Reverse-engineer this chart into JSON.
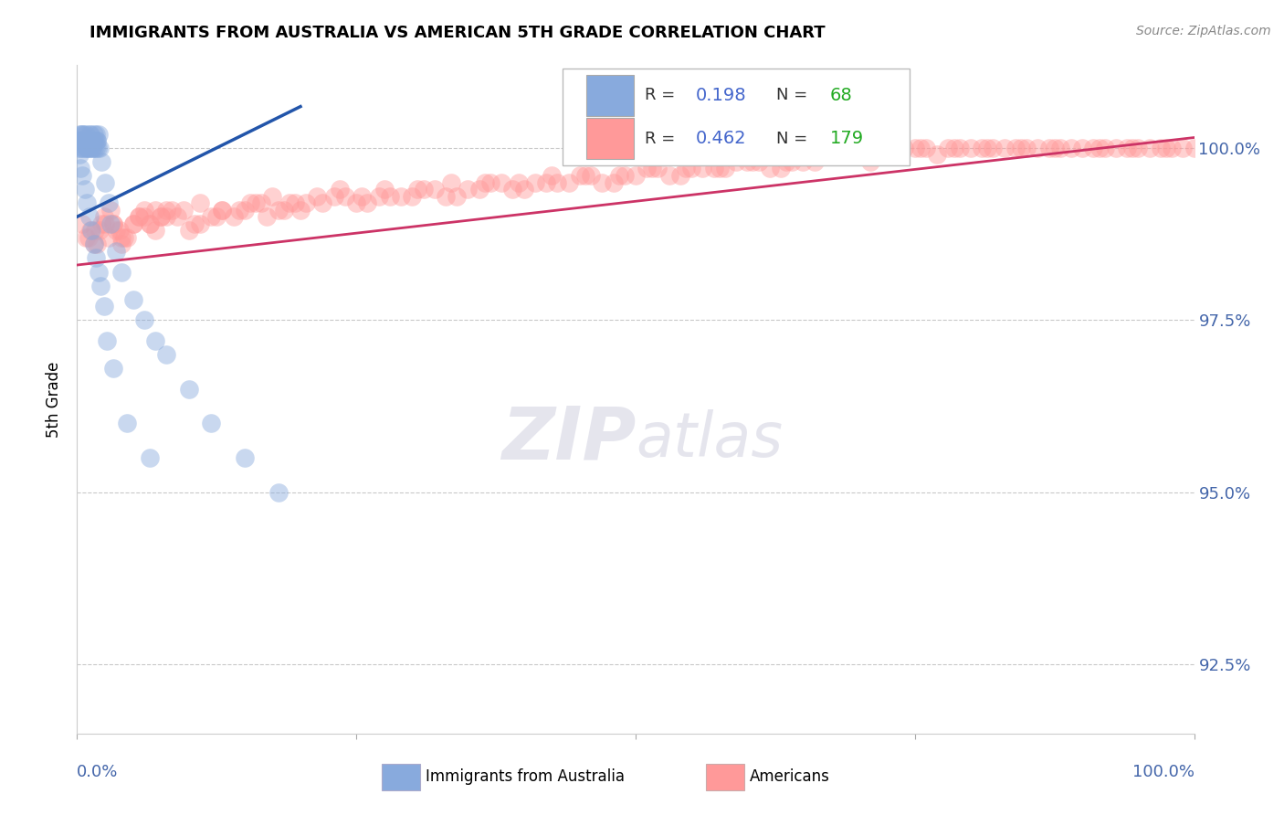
{
  "title": "IMMIGRANTS FROM AUSTRALIA VS AMERICAN 5TH GRADE CORRELATION CHART",
  "source_text": "Source: ZipAtlas.com",
  "ylabel": "5th Grade",
  "legend_blue_r_val": "0.198",
  "legend_blue_n_val": "68",
  "legend_pink_r_val": "0.462",
  "legend_pink_n_val": "179",
  "ytick_labels_right": [
    "92.5%",
    "95.0%",
    "97.5%",
    "100.0%"
  ],
  "yticks_right": [
    92.5,
    95.0,
    97.5,
    100.0
  ],
  "blue_color": "#88AADD",
  "pink_color": "#FF9999",
  "blue_line_color": "#2255AA",
  "pink_line_color": "#CC3366",
  "watermark_text": "ZIPatlas",
  "blue_scatter_x": [
    0.1,
    0.2,
    0.3,
    0.4,
    0.5,
    0.6,
    0.7,
    0.8,
    0.9,
    1.0,
    1.1,
    1.2,
    1.3,
    1.4,
    1.5,
    1.6,
    1.7,
    1.8,
    1.9,
    2.0,
    0.15,
    0.25,
    0.35,
    0.45,
    0.55,
    0.65,
    0.75,
    0.85,
    0.95,
    1.05,
    1.15,
    1.25,
    1.35,
    1.45,
    1.55,
    1.65,
    1.75,
    1.85,
    2.2,
    2.5,
    2.8,
    3.0,
    3.5,
    4.0,
    5.0,
    6.0,
    7.0,
    8.0,
    10.0,
    12.0,
    15.0,
    18.0,
    0.2,
    0.3,
    0.5,
    0.7,
    0.9,
    1.1,
    1.3,
    1.5,
    1.7,
    1.9,
    2.1,
    2.4,
    2.7,
    3.2,
    4.5,
    6.5
  ],
  "blue_scatter_y": [
    100.1,
    100.2,
    100.0,
    100.1,
    100.2,
    100.0,
    100.1,
    100.2,
    100.0,
    100.1,
    100.0,
    100.2,
    100.1,
    100.0,
    100.2,
    100.1,
    100.0,
    100.1,
    100.2,
    100.0,
    100.1,
    100.0,
    100.2,
    100.1,
    100.0,
    100.2,
    100.1,
    100.0,
    100.1,
    100.0,
    100.2,
    100.1,
    100.0,
    100.1,
    100.0,
    100.2,
    100.1,
    100.0,
    99.8,
    99.5,
    99.2,
    98.9,
    98.5,
    98.2,
    97.8,
    97.5,
    97.2,
    97.0,
    96.5,
    96.0,
    95.5,
    95.0,
    99.9,
    99.7,
    99.6,
    99.4,
    99.2,
    99.0,
    98.8,
    98.6,
    98.4,
    98.2,
    98.0,
    97.7,
    97.2,
    96.8,
    96.0,
    95.5
  ],
  "pink_scatter_x": [
    0.5,
    1.0,
    1.5,
    2.0,
    2.5,
    3.0,
    3.5,
    4.0,
    4.5,
    5.0,
    5.5,
    6.0,
    6.5,
    7.0,
    7.5,
    8.0,
    9.0,
    10.0,
    11.0,
    12.0,
    13.0,
    14.0,
    15.0,
    16.0,
    17.0,
    18.0,
    19.0,
    20.0,
    22.0,
    24.0,
    26.0,
    28.0,
    30.0,
    32.0,
    34.0,
    36.0,
    38.0,
    40.0,
    42.0,
    44.0,
    46.0,
    48.0,
    50.0,
    52.0,
    54.0,
    56.0,
    58.0,
    60.0,
    62.0,
    64.0,
    66.0,
    68.0,
    70.0,
    72.0,
    74.0,
    76.0,
    78.0,
    80.0,
    82.0,
    84.0,
    86.0,
    88.0,
    90.0,
    92.0,
    94.0,
    96.0,
    98.0,
    100.0,
    1.2,
    1.8,
    2.2,
    2.8,
    3.2,
    3.8,
    4.2,
    5.5,
    6.5,
    7.5,
    8.5,
    10.5,
    12.5,
    14.5,
    16.5,
    18.5,
    20.5,
    23.0,
    25.0,
    27.0,
    29.0,
    31.0,
    33.0,
    35.0,
    37.0,
    39.0,
    41.0,
    43.0,
    45.0,
    47.0,
    49.0,
    51.0,
    53.0,
    55.0,
    57.0,
    59.0,
    61.0,
    63.0,
    65.0,
    67.0,
    69.0,
    71.0,
    73.0,
    75.0,
    77.0,
    79.0,
    81.0,
    83.0,
    85.0,
    87.0,
    89.0,
    91.0,
    93.0,
    95.0,
    97.0,
    99.0,
    0.8,
    1.6,
    2.4,
    3.2,
    4.0,
    5.0,
    6.0,
    7.0,
    8.0,
    9.5,
    11.0,
    13.0,
    15.5,
    17.5,
    19.5,
    21.5,
    23.5,
    25.5,
    27.5,
    30.5,
    33.5,
    36.5,
    39.5,
    42.5,
    45.5,
    48.5,
    51.5,
    54.5,
    57.5,
    60.5,
    63.5,
    66.5,
    69.5,
    72.5,
    75.5,
    78.5,
    81.5,
    84.5,
    87.5,
    91.5,
    94.5,
    97.5
  ],
  "pink_scatter_y": [
    98.9,
    98.7,
    98.6,
    98.8,
    98.9,
    99.1,
    98.8,
    98.6,
    98.7,
    98.9,
    99.0,
    99.1,
    98.9,
    98.8,
    99.0,
    99.1,
    99.0,
    98.8,
    98.9,
    99.0,
    99.1,
    99.0,
    99.1,
    99.2,
    99.0,
    99.1,
    99.2,
    99.1,
    99.2,
    99.3,
    99.2,
    99.3,
    99.3,
    99.4,
    99.3,
    99.4,
    99.5,
    99.4,
    99.5,
    99.5,
    99.6,
    99.5,
    99.6,
    99.7,
    99.6,
    99.7,
    99.7,
    99.8,
    99.7,
    99.8,
    99.8,
    99.9,
    99.9,
    99.9,
    100.0,
    100.0,
    100.0,
    100.0,
    100.0,
    100.0,
    100.0,
    100.0,
    100.0,
    100.0,
    100.0,
    100.0,
    100.0,
    100.0,
    98.8,
    98.6,
    98.9,
    98.7,
    98.9,
    98.8,
    98.7,
    99.0,
    98.9,
    99.0,
    99.1,
    98.9,
    99.0,
    99.1,
    99.2,
    99.1,
    99.2,
    99.3,
    99.2,
    99.3,
    99.3,
    99.4,
    99.3,
    99.4,
    99.5,
    99.4,
    99.5,
    99.5,
    99.6,
    99.5,
    99.6,
    99.7,
    99.6,
    99.7,
    99.7,
    99.8,
    99.8,
    99.7,
    99.8,
    99.9,
    99.9,
    99.8,
    99.9,
    100.0,
    99.9,
    100.0,
    100.0,
    100.0,
    100.0,
    100.0,
    100.0,
    100.0,
    100.0,
    100.0,
    100.0,
    100.0,
    98.7,
    98.8,
    99.0,
    98.9,
    98.7,
    98.9,
    99.0,
    99.1,
    99.0,
    99.1,
    99.2,
    99.1,
    99.2,
    99.3,
    99.2,
    99.3,
    99.4,
    99.3,
    99.4,
    99.4,
    99.5,
    99.5,
    99.5,
    99.6,
    99.6,
    99.6,
    99.7,
    99.7,
    99.7,
    99.8,
    99.8,
    99.9,
    99.9,
    99.9,
    100.0,
    100.0,
    100.0,
    100.0,
    100.0,
    100.0,
    100.0,
    100.0
  ],
  "xlim": [
    0,
    100
  ],
  "ylim": [
    91.5,
    101.2
  ],
  "blue_line_x": [
    0.0,
    20.0
  ],
  "blue_line_y": [
    99.0,
    100.6
  ],
  "pink_line_x": [
    0.0,
    100.0
  ],
  "pink_line_y": [
    98.3,
    100.15
  ]
}
